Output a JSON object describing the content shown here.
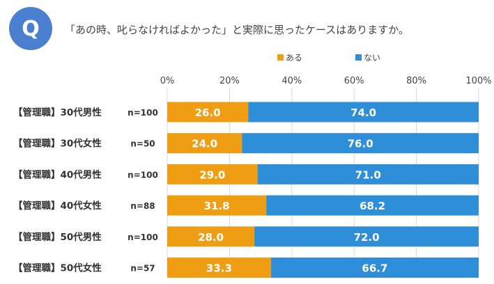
{
  "header": {
    "badge_letter": "Q",
    "badge_color": "#4a7fd0",
    "question": "「あの時、叱らなければよかった」と実際に思ったケースはありますか。"
  },
  "chart_data": {
    "type": "bar",
    "stacked": true,
    "orientation": "horizontal",
    "title": "",
    "xlabel": "",
    "ylabel": "",
    "xlim": [
      0,
      100
    ],
    "x_ticks": [
      "0%",
      "20%",
      "40%",
      "60%",
      "80%",
      "100%"
    ],
    "grid": true,
    "legend_position": "top",
    "categories": [
      "【管理職】30代男性",
      "【管理職】30代女性",
      "【管理職】40代男性",
      "【管理職】40代女性",
      "【管理職】50代男性",
      "【管理職】50代女性"
    ],
    "sample_sizes": [
      "n=100",
      "n=50",
      "n=100",
      "n=88",
      "n=100",
      "n=57"
    ],
    "series": [
      {
        "name": "ある",
        "color": "#ef9e14",
        "values": [
          26.0,
          24.0,
          29.0,
          31.8,
          28.0,
          33.3
        ],
        "labels": [
          "26.0",
          "24.0",
          "29.0",
          "31.8",
          "28.0",
          "33.3"
        ]
      },
      {
        "name": "ない",
        "color": "#2e8ed8",
        "values": [
          74.0,
          76.0,
          71.0,
          68.2,
          72.0,
          66.7
        ],
        "labels": [
          "74.0",
          "76.0",
          "71.0",
          "68.2",
          "72.0",
          "66.7"
        ]
      }
    ]
  }
}
